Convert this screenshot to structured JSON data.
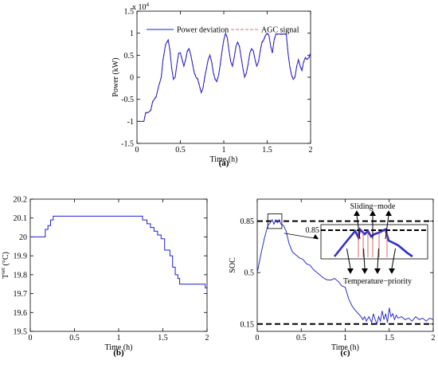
{
  "colors": {
    "power": "#1f1fd6",
    "agc": "#e0706a",
    "soc": "#2f2fc8",
    "temp": "#1f1fd6",
    "dash": "#000000"
  },
  "chart_data": [
    {
      "id": "a",
      "type": "line",
      "caption": "(a)",
      "xlabel": "Time (h)",
      "ylabel": "Power (kW)",
      "yexponent": "x 10",
      "yexponent_power": "4",
      "xlim": [
        0,
        2
      ],
      "ylim": [
        -15000,
        15000
      ],
      "xticks": [
        "0",
        "0.5",
        "1",
        "1.5",
        "2"
      ],
      "yticks": [
        "-1.5",
        "-1",
        "-0.5",
        "0",
        "0.5",
        "1",
        "1.5"
      ],
      "legend_position": "top",
      "series": [
        {
          "name": "Power deviation",
          "x": [
            0,
            0.08,
            0.1,
            0.13,
            0.16,
            0.18,
            0.2,
            0.22,
            0.25,
            0.28,
            0.3,
            0.33,
            0.36,
            0.38,
            0.4,
            0.42,
            0.44,
            0.46,
            0.48,
            0.5,
            0.52,
            0.54,
            0.56,
            0.58,
            0.6,
            0.62,
            0.64,
            0.66,
            0.68,
            0.7,
            0.72,
            0.74,
            0.76,
            0.78,
            0.8,
            0.82,
            0.84,
            0.86,
            0.88,
            0.9,
            0.92,
            0.94,
            0.96,
            0.98,
            1.0,
            1.02,
            1.04,
            1.06,
            1.08,
            1.1,
            1.12,
            1.14,
            1.16,
            1.18,
            1.2,
            1.22,
            1.24,
            1.26,
            1.28,
            1.3,
            1.32,
            1.34,
            1.36,
            1.38,
            1.4,
            1.42,
            1.44,
            1.46,
            1.48,
            1.5,
            1.52,
            1.54,
            1.56,
            1.58,
            1.6,
            1.62,
            1.64,
            1.66,
            1.68,
            1.7,
            1.72,
            1.74,
            1.76,
            1.78,
            1.8,
            1.82,
            1.84,
            1.86,
            1.88,
            1.9,
            1.92,
            1.94,
            1.96,
            1.98,
            2.0
          ],
          "y": [
            -10000,
            -10000,
            -8000,
            -8000,
            -7500,
            -5500,
            -5000,
            -4500,
            -2000,
            0,
            4000,
            7500,
            8500,
            6000,
            2000,
            -500,
            0,
            3000,
            5500,
            5500,
            4000,
            2500,
            4000,
            6000,
            6500,
            5000,
            3000,
            1000,
            0,
            -500,
            -2000,
            -3500,
            -2500,
            0,
            2000,
            4000,
            5000,
            3500,
            1000,
            -500,
            -1000,
            500,
            3000,
            6000,
            8500,
            10000,
            9000,
            6000,
            3500,
            2500,
            4500,
            7000,
            8000,
            7000,
            4500,
            2000,
            0,
            1000,
            3000,
            5500,
            6500,
            6000,
            4000,
            2500,
            3500,
            6000,
            8000,
            8500,
            9500,
            10000,
            9500,
            7000,
            5500,
            8500,
            9800,
            9800,
            9800,
            9800,
            9800,
            9800,
            9800,
            5500,
            2500,
            500,
            -500,
            0,
            2500,
            4000,
            2500,
            1500,
            3500,
            4500,
            4000,
            4500,
            5500
          ]
        },
        {
          "name": "AGC signal",
          "x": [
            0,
            0.08,
            0.1,
            0.13,
            0.16,
            0.18,
            0.2,
            0.22,
            0.25,
            0.28,
            0.3,
            0.33,
            0.36,
            0.38,
            0.4,
            0.42,
            0.44,
            0.46,
            0.48,
            0.5,
            0.52,
            0.54,
            0.56,
            0.58,
            0.6,
            0.62,
            0.64,
            0.66,
            0.68,
            0.7,
            0.72,
            0.74,
            0.76,
            0.78,
            0.8,
            0.82,
            0.84,
            0.86,
            0.88,
            0.9,
            0.92,
            0.94,
            0.96,
            0.98,
            1.0,
            1.02,
            1.04,
            1.06,
            1.08,
            1.1,
            1.12,
            1.14,
            1.16,
            1.18,
            1.2,
            1.22,
            1.24,
            1.26,
            1.28,
            1.3,
            1.32,
            1.34,
            1.36,
            1.38,
            1.4,
            1.42,
            1.44,
            1.46,
            1.48,
            1.5,
            1.52,
            1.54,
            1.56,
            1.58,
            1.6,
            1.62,
            1.64,
            1.66,
            1.68,
            1.7,
            1.72,
            1.74,
            1.76,
            1.78,
            1.8,
            1.82,
            1.84,
            1.86,
            1.88,
            1.9,
            1.92,
            1.94,
            1.96,
            1.98,
            2.0
          ],
          "y": [
            -10000,
            -10000,
            -8200,
            -8000,
            -7300,
            -5800,
            -4800,
            -4300,
            -2200,
            200,
            3800,
            7300,
            8300,
            6200,
            2200,
            -300,
            200,
            2800,
            5300,
            5600,
            4200,
            2600,
            3800,
            5800,
            6300,
            5200,
            3200,
            1200,
            200,
            -300,
            -1800,
            -3300,
            -2700,
            -200,
            1800,
            3800,
            5100,
            3700,
            1200,
            -300,
            -800,
            300,
            2800,
            5800,
            8300,
            9800,
            9200,
            6200,
            3700,
            2700,
            4300,
            6800,
            7800,
            7200,
            4700,
            2200,
            200,
            800,
            2800,
            5300,
            6300,
            6200,
            4200,
            2700,
            3300,
            5800,
            7800,
            8300,
            9300,
            9800,
            9700,
            7200,
            5700,
            8300,
            9700,
            9700,
            9700,
            9700,
            9700,
            9700,
            9700,
            5700,
            2700,
            700,
            -300,
            200,
            2300,
            3800,
            2700,
            1700,
            3300,
            4300,
            4200,
            4300,
            5300
          ]
        }
      ]
    },
    {
      "id": "b",
      "type": "line",
      "caption": "(b)",
      "xlabel": "Time (h)",
      "ylabel": "T",
      "ylabel_sup": "set",
      "ylabel_unit": " (°C)",
      "xlim": [
        0,
        2
      ],
      "ylim": [
        19.5,
        20.2
      ],
      "xticks": [
        "0",
        "0.5",
        "1",
        "1.5",
        "2"
      ],
      "yticks": [
        "19.5",
        "19.6",
        "19.7",
        "19.8",
        "19.9",
        "20",
        "20.1",
        "20.2"
      ],
      "series": [
        {
          "name": "",
          "x": [
            0,
            0.17,
            0.17,
            0.2,
            0.2,
            0.23,
            0.23,
            0.26,
            0.26,
            1.27,
            1.27,
            1.32,
            1.32,
            1.36,
            1.36,
            1.4,
            1.4,
            1.44,
            1.44,
            1.48,
            1.48,
            1.52,
            1.52,
            1.58,
            1.58,
            1.61,
            1.61,
            1.64,
            1.64,
            1.67,
            1.67,
            1.69,
            1.69,
            1.72,
            1.72,
            1.98,
            1.98,
            2.0
          ],
          "y": [
            20.0,
            20.0,
            20.04,
            20.04,
            20.06,
            20.06,
            20.09,
            20.09,
            20.11,
            20.11,
            20.09,
            20.09,
            20.07,
            20.07,
            20.05,
            20.05,
            20.03,
            20.03,
            20.01,
            20.01,
            19.99,
            19.99,
            19.93,
            19.93,
            19.9,
            19.9,
            19.84,
            19.84,
            19.8,
            19.8,
            19.78,
            19.78,
            19.75,
            19.75,
            19.75,
            19.75,
            19.73,
            19.73
          ]
        }
      ]
    },
    {
      "id": "c",
      "type": "line",
      "caption": "(c)",
      "xlabel": "Time (h)",
      "ylabel": "SOC",
      "xlim": [
        0,
        2
      ],
      "ylim": [
        0.1,
        1.0
      ],
      "xticks": [
        "0",
        "0.5",
        "1",
        "1.5",
        "2"
      ],
      "yticks": [
        "0.15",
        "0.5",
        "0.85"
      ],
      "hlines": [
        0.85,
        0.15
      ],
      "annotations": {
        "sliding": "Sliding−mode",
        "temperature": "Temperature−priority",
        "inset_level": "0.85"
      },
      "series": [
        {
          "name": "",
          "x": [
            0,
            0.04,
            0.08,
            0.12,
            0.15,
            0.17,
            0.19,
            0.21,
            0.23,
            0.25,
            0.27,
            0.3,
            0.33,
            0.36,
            0.4,
            0.44,
            0.48,
            0.52,
            0.56,
            0.6,
            0.64,
            0.68,
            0.72,
            0.76,
            0.8,
            0.84,
            0.88,
            0.92,
            0.96,
            1.0,
            1.04,
            1.08,
            1.12,
            1.15,
            1.18,
            1.2,
            1.22,
            1.24,
            1.27,
            1.3,
            1.32,
            1.34,
            1.36,
            1.38,
            1.4,
            1.42,
            1.44,
            1.46,
            1.48,
            1.5,
            1.52,
            1.54,
            1.56,
            1.58,
            1.6,
            1.64,
            1.68,
            1.72,
            1.76,
            1.8,
            1.84,
            1.88,
            1.92,
            1.96,
            2.0
          ],
          "y": [
            0.5,
            0.62,
            0.73,
            0.82,
            0.84,
            0.86,
            0.83,
            0.86,
            0.84,
            0.86,
            0.83,
            0.82,
            0.78,
            0.7,
            0.64,
            0.62,
            0.6,
            0.59,
            0.56,
            0.55,
            0.52,
            0.5,
            0.48,
            0.46,
            0.45,
            0.45,
            0.46,
            0.44,
            0.41,
            0.4,
            0.32,
            0.27,
            0.24,
            0.22,
            0.2,
            0.18,
            0.2,
            0.17,
            0.2,
            0.16,
            0.22,
            0.18,
            0.15,
            0.2,
            0.17,
            0.24,
            0.18,
            0.22,
            0.16,
            0.26,
            0.2,
            0.22,
            0.18,
            0.21,
            0.19,
            0.2,
            0.18,
            0.19,
            0.17,
            0.2,
            0.18,
            0.19,
            0.17,
            0.19,
            0.18
          ]
        }
      ]
    }
  ]
}
